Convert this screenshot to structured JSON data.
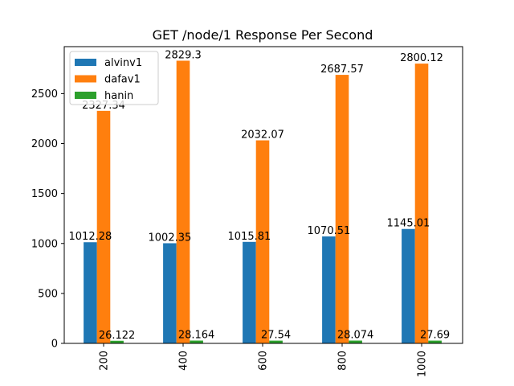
{
  "chart_data": {
    "type": "bar",
    "title": "GET /node/1 Response Per Second",
    "xlabel": "",
    "ylabel": "",
    "categories": [
      "200",
      "400",
      "600",
      "800",
      "1000"
    ],
    "series": [
      {
        "name": "alvinv1",
        "color": "#1f77b4",
        "values": [
          1012.28,
          1002.35,
          1015.81,
          1070.51,
          1145.01
        ]
      },
      {
        "name": "dafav1",
        "color": "#ff7f0e",
        "values": [
          2327.34,
          2829.3,
          2032.07,
          2687.57,
          2800.12
        ]
      },
      {
        "name": "hanin",
        "color": "#2ca02c",
        "values": [
          26.122,
          28.164,
          27.54,
          28.074,
          27.69
        ]
      }
    ],
    "ylim": [
      0,
      2970
    ],
    "yticks": [
      0,
      500,
      1000,
      1500,
      2000,
      2500
    ],
    "xtick_rotation": "vertical",
    "grid": false,
    "legend_position": "top-left"
  }
}
